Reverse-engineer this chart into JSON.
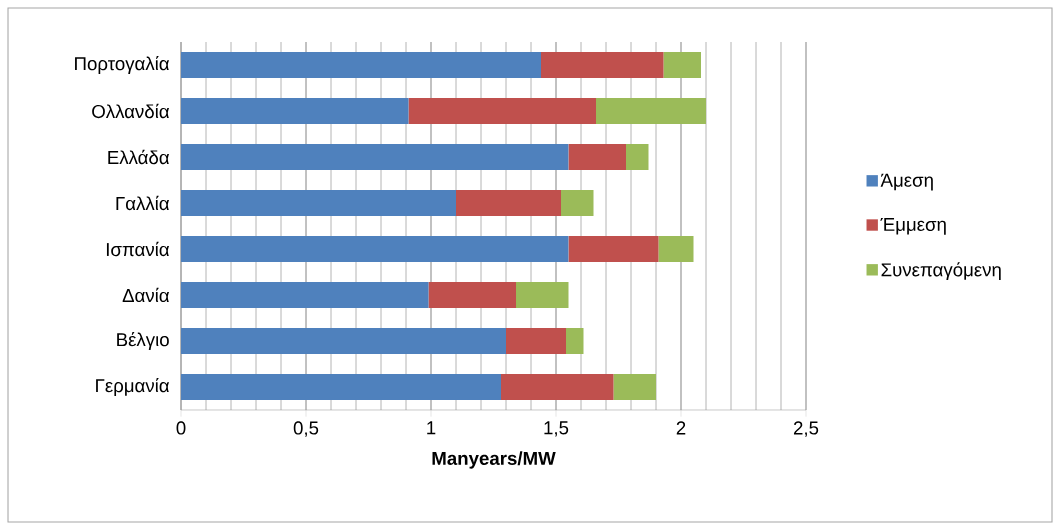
{
  "chart_data": {
    "type": "bar",
    "orientation": "horizontal",
    "stacked": true,
    "categories": [
      "Πορτογαλία",
      "Ολλανδία",
      "Ελλάδα",
      "Γαλλία",
      "Ισπανία",
      "Δανία",
      "Βέλγιο",
      "Γερμανία"
    ],
    "series": [
      {
        "name": "Άμεση",
        "color": "#4f81bd",
        "values": [
          1.44,
          0.91,
          1.55,
          1.1,
          1.55,
          0.99,
          1.3,
          1.28
        ]
      },
      {
        "name": "Έμμεση",
        "color": "#c0504d",
        "values": [
          0.49,
          0.75,
          0.23,
          0.42,
          0.36,
          0.35,
          0.24,
          0.45
        ]
      },
      {
        "name": "Συνεπαγόμενη",
        "color": "#9bbb59",
        "values": [
          0.15,
          0.44,
          0.09,
          0.13,
          0.14,
          0.21,
          0.07,
          0.17
        ]
      }
    ],
    "xlabel": "Manyears/MW",
    "xlim": [
      0,
      2.5
    ],
    "xticks": [
      {
        "value": 0,
        "label": "0"
      },
      {
        "value": 0.5,
        "label": "0,5"
      },
      {
        "value": 1,
        "label": "1"
      },
      {
        "value": 1.5,
        "label": "1,5"
      },
      {
        "value": 2,
        "label": "2"
      },
      {
        "value": 2.5,
        "label": "2,5"
      }
    ],
    "grid": "x",
    "legend": "right"
  }
}
